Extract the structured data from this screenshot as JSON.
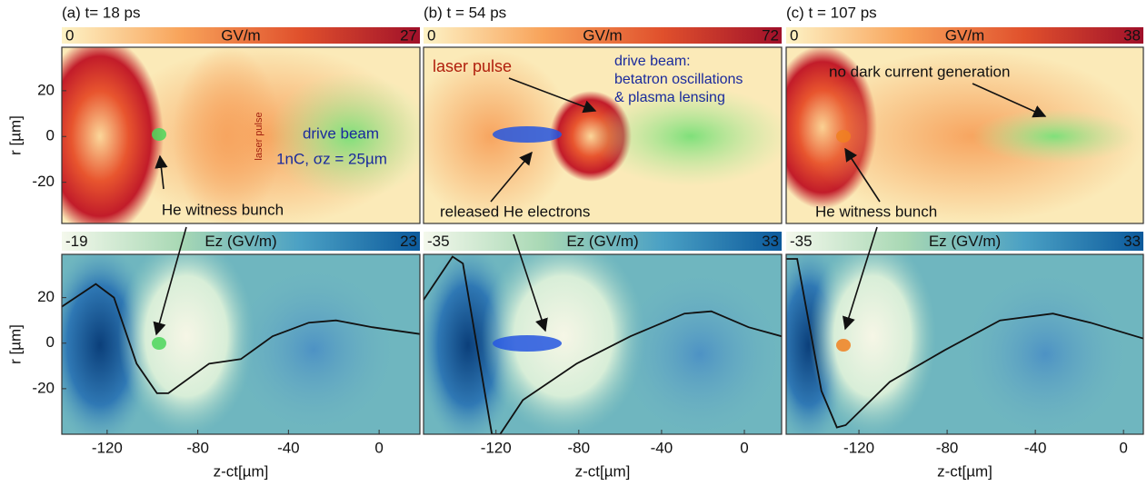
{
  "chart_data": [
    {
      "type": "field-map",
      "title": "(a) t= 18 ps",
      "colorbar": {
        "min": 0,
        "max": 27,
        "label": "GV/m",
        "colors": [
          "#fdf3c6",
          "#f8a35a",
          "#e0502c",
          "#a0102a"
        ]
      },
      "xlim": [
        -140,
        18
      ],
      "ylim": [
        -38,
        39
      ],
      "yticks": [
        -20,
        0,
        20
      ],
      "ylabel": "r [µm]",
      "annotations": [
        "drive beam",
        "1nC, σz = 25µm",
        "laser pulse",
        "He witness bunch"
      ]
    },
    {
      "type": "field-map",
      "title": "(b) t = 54 ps",
      "colorbar": {
        "min": 0,
        "max": 72,
        "label": "GV/m",
        "colors": [
          "#fdf3c6",
          "#f8a35a",
          "#e0502c",
          "#a0102a"
        ]
      },
      "xlim": [
        -155,
        18
      ],
      "ylim": [
        -38,
        39
      ],
      "annotations": [
        "laser pulse",
        "drive beam:",
        "betatron oscillations",
        "& plasma lensing",
        "released He electrons"
      ]
    },
    {
      "type": "field-map",
      "title": "(c) t = 107 ps",
      "colorbar": {
        "min": 0,
        "max": 38,
        "label": "GV/m",
        "colors": [
          "#fdf3c6",
          "#f8a35a",
          "#e0502c",
          "#a0102a"
        ]
      },
      "xlim": [
        -153,
        9
      ],
      "ylim": [
        -38,
        39
      ],
      "annotations": [
        "no dark current generation",
        "He witness bunch"
      ]
    },
    {
      "type": "field-line",
      "colorbar": {
        "min": -19,
        "max": 23,
        "label": "Ez (GV/m)",
        "colors": [
          "#f4f8ec",
          "#a8d8b4",
          "#4aa0c4",
          "#0c5a9c"
        ]
      },
      "xlim": [
        -140,
        18
      ],
      "ylim": [
        -40,
        39
      ],
      "yticks": [
        -20,
        0,
        20
      ],
      "ylabel": "r [µm]",
      "xticks": [
        -120,
        -80,
        -40,
        0
      ],
      "xlabel": "z-ct[µm]",
      "x": [
        -140,
        -125,
        -117,
        -107,
        -98,
        -93,
        -75,
        -61,
        -47,
        -31,
        -19,
        -3,
        18
      ],
      "values": [
        16,
        26,
        20,
        -9,
        -22,
        -22,
        -9,
        -7,
        3,
        9,
        10,
        7,
        4
      ],
      "color": "#111111"
    },
    {
      "type": "field-line",
      "colorbar": {
        "min": -35,
        "max": 33,
        "label": "Ez (GV/m)",
        "colors": [
          "#f4f8ec",
          "#a8d8b4",
          "#4aa0c4",
          "#0c5a9c"
        ]
      },
      "xlim": [
        -155,
        18
      ],
      "ylim": [
        -40,
        39
      ],
      "xticks": [
        -120,
        -80,
        -40,
        0
      ],
      "xlabel": "z-ct[µm]",
      "x": [
        -155,
        -141,
        -136,
        -122,
        -118,
        -107,
        -81,
        -55,
        -29,
        -16,
        2,
        18
      ],
      "values": [
        19,
        38,
        35,
        -40,
        -40,
        -25,
        -9,
        3,
        13,
        14,
        7,
        3
      ],
      "color": "#111111"
    },
    {
      "type": "field-line",
      "colorbar": {
        "min": -35,
        "max": 33,
        "label": "Ez (GV/m)",
        "colors": [
          "#f4f8ec",
          "#a8d8b4",
          "#4aa0c4",
          "#0c5a9c"
        ]
      },
      "xlim": [
        -153,
        9
      ],
      "ylim": [
        -40,
        39
      ],
      "xticks": [
        -120,
        -80,
        -40,
        0
      ],
      "xlabel": "z-ct[µm]",
      "x": [
        -153,
        -148,
        -137,
        -130,
        -126,
        -106,
        -81,
        -56,
        -32,
        -15,
        9
      ],
      "values": [
        37,
        37,
        -21,
        -37,
        -36,
        -17,
        -3,
        10,
        13,
        9,
        2
      ],
      "color": "#111111"
    }
  ]
}
